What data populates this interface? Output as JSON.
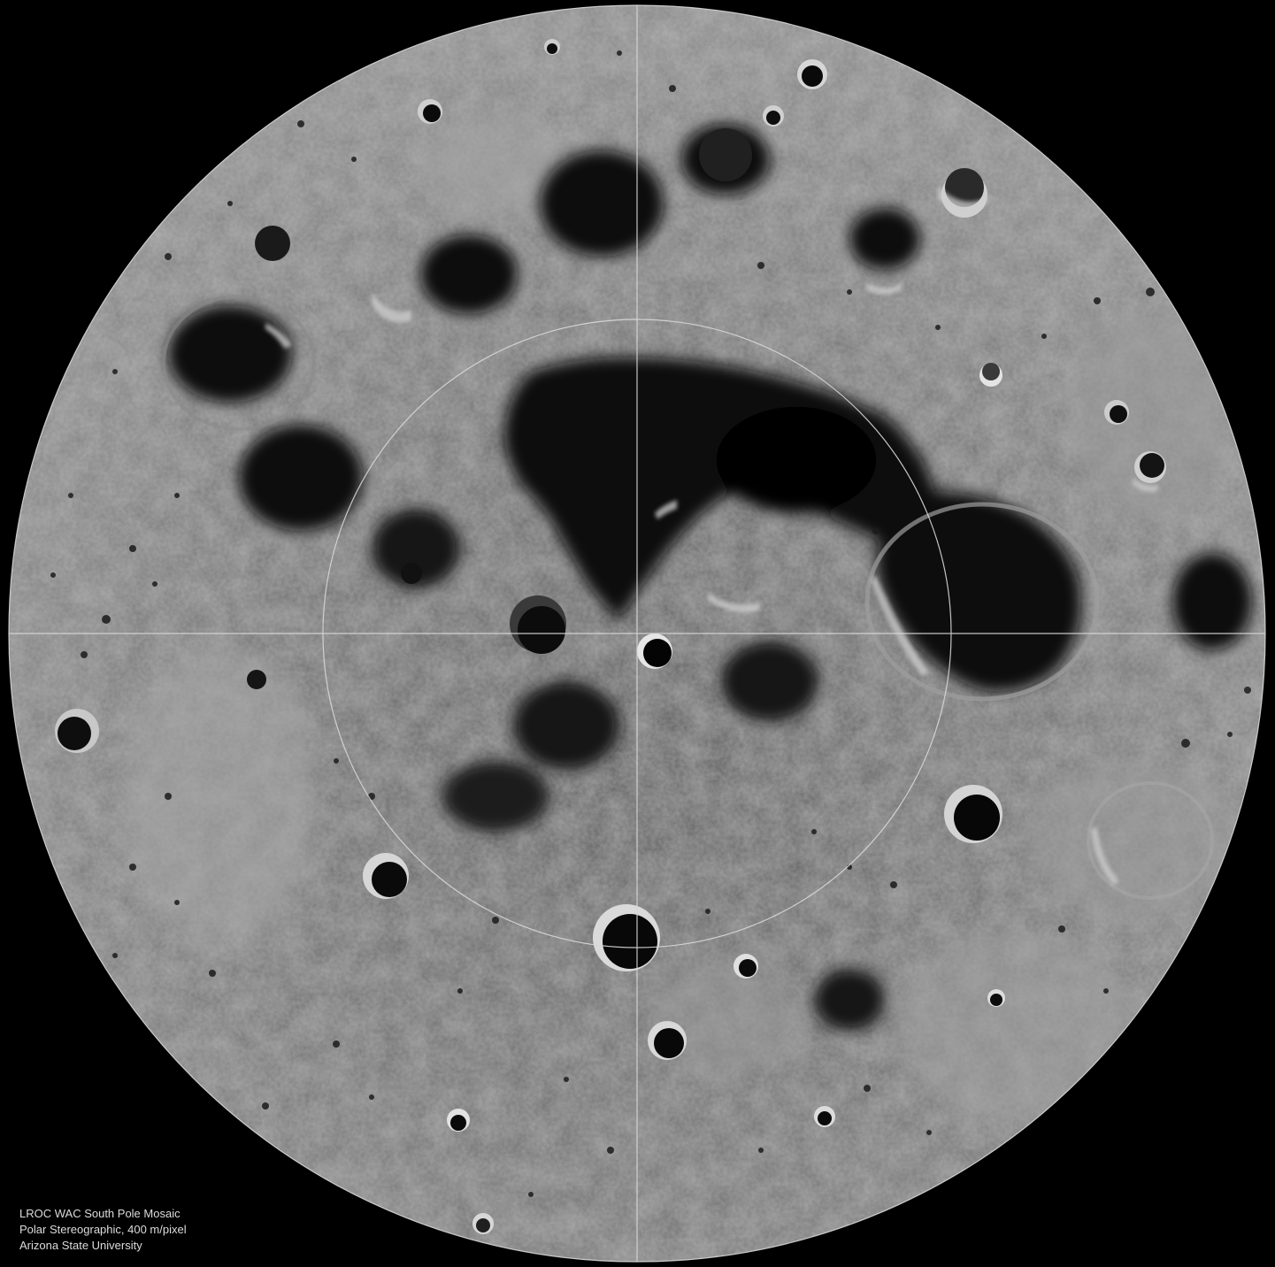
{
  "caption": {
    "line1": "LROC WAC South Pole Mosaic",
    "line2": "Polar Stereographic, 400 m/pixel",
    "line3": "Arizona State University"
  },
  "colors": {
    "background": "#000000",
    "surface_light": "#9a9a9a",
    "surface_mid": "#5e5e5e",
    "surface_dark": "#2a2a2a",
    "shadow": "#060606",
    "grid_lines": "#d8d8d8"
  }
}
